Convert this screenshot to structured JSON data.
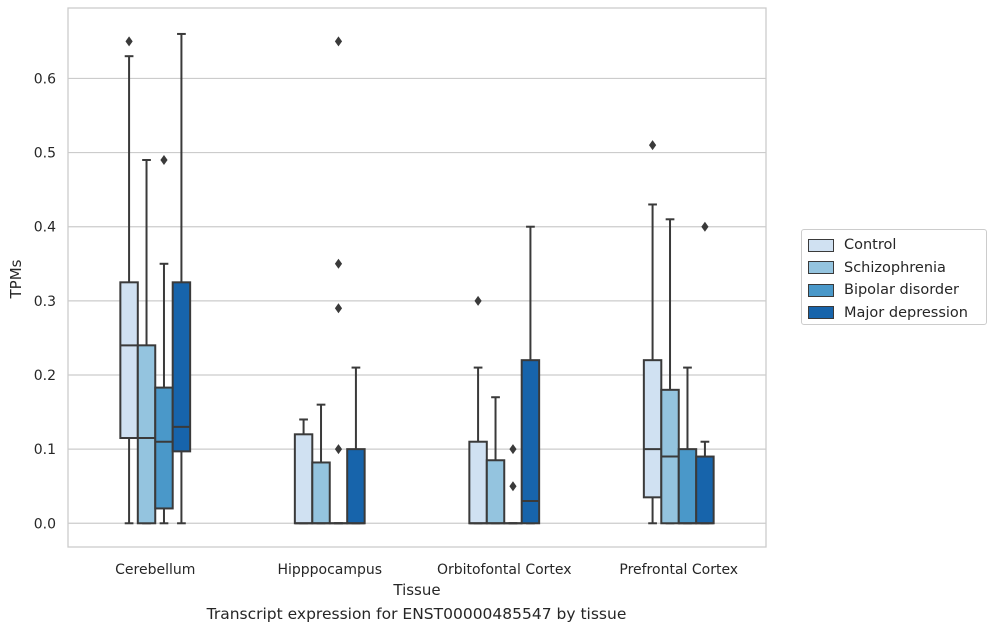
{
  "caption": "Transcript expression for ENST00000485547 by tissue",
  "chart_data": {
    "type": "box",
    "xlabel": "Tissue",
    "ylabel": "TPMs",
    "ylim": [
      -0.032,
      0.695
    ],
    "yticks": [
      "0.0",
      "0.1",
      "0.2",
      "0.3",
      "0.4",
      "0.5",
      "0.6"
    ],
    "grid": true,
    "legend_position": "right-outside",
    "categories": [
      "Cerebellum",
      "Hipppocampus",
      "Orbitofontal Cortex",
      "Prefrontal Cortex"
    ],
    "series": [
      {
        "name": "Control",
        "color": "#d0e1f2",
        "boxes": [
          {
            "whislo": 0.0,
            "q1": 0.115,
            "med": 0.24,
            "q3": 0.325,
            "whishi": 0.63,
            "fliers": [
              0.65
            ]
          },
          {
            "whislo": 0.0,
            "q1": 0.0,
            "med": 0.0,
            "q3": 0.12,
            "whishi": 0.14,
            "fliers": []
          },
          {
            "whislo": 0.0,
            "q1": 0.0,
            "med": 0.0,
            "q3": 0.11,
            "whishi": 0.21,
            "fliers": [
              0.3
            ]
          },
          {
            "whislo": 0.0,
            "q1": 0.035,
            "med": 0.1,
            "q3": 0.22,
            "whishi": 0.43,
            "fliers": [
              0.51
            ]
          }
        ]
      },
      {
        "name": "Schizophrenia",
        "color": "#94c4df",
        "boxes": [
          {
            "whislo": 0.0,
            "q1": 0.0,
            "med": 0.115,
            "q3": 0.24,
            "whishi": 0.49,
            "fliers": []
          },
          {
            "whislo": 0.0,
            "q1": 0.0,
            "med": 0.0,
            "q3": 0.082,
            "whishi": 0.16,
            "fliers": []
          },
          {
            "whislo": 0.0,
            "q1": 0.0,
            "med": 0.0,
            "q3": 0.085,
            "whishi": 0.17,
            "fliers": []
          },
          {
            "whislo": 0.0,
            "q1": 0.0,
            "med": 0.09,
            "q3": 0.18,
            "whishi": 0.41,
            "fliers": []
          }
        ]
      },
      {
        "name": "Bipolar disorder",
        "color": "#4a98c9",
        "boxes": [
          {
            "whislo": 0.0,
            "q1": 0.02,
            "med": 0.11,
            "q3": 0.183,
            "whishi": 0.35,
            "fliers": [
              0.49
            ]
          },
          {
            "whislo": 0.0,
            "q1": 0.0,
            "med": 0.0,
            "q3": 0.0,
            "whishi": 0.0,
            "fliers": [
              0.1,
              0.29,
              0.35,
              0.65
            ]
          },
          {
            "whislo": 0.0,
            "q1": 0.0,
            "med": 0.0,
            "q3": 0.0,
            "whishi": 0.0,
            "fliers": [
              0.05,
              0.1
            ]
          },
          {
            "whislo": 0.0,
            "q1": 0.0,
            "med": 0.0,
            "q3": 0.1,
            "whishi": 0.21,
            "fliers": []
          }
        ]
      },
      {
        "name": "Major depression",
        "color": "#1764ab",
        "boxes": [
          {
            "whislo": 0.0,
            "q1": 0.097,
            "med": 0.13,
            "q3": 0.325,
            "whishi": 0.66,
            "fliers": []
          },
          {
            "whislo": 0.0,
            "q1": 0.0,
            "med": 0.0,
            "q3": 0.1,
            "whishi": 0.21,
            "fliers": []
          },
          {
            "whislo": 0.0,
            "q1": 0.0,
            "med": 0.03,
            "q3": 0.22,
            "whishi": 0.4,
            "fliers": []
          },
          {
            "whislo": 0.0,
            "q1": 0.0,
            "med": 0.0,
            "q3": 0.09,
            "whishi": 0.11,
            "fliers": [
              0.4
            ]
          }
        ]
      }
    ]
  }
}
